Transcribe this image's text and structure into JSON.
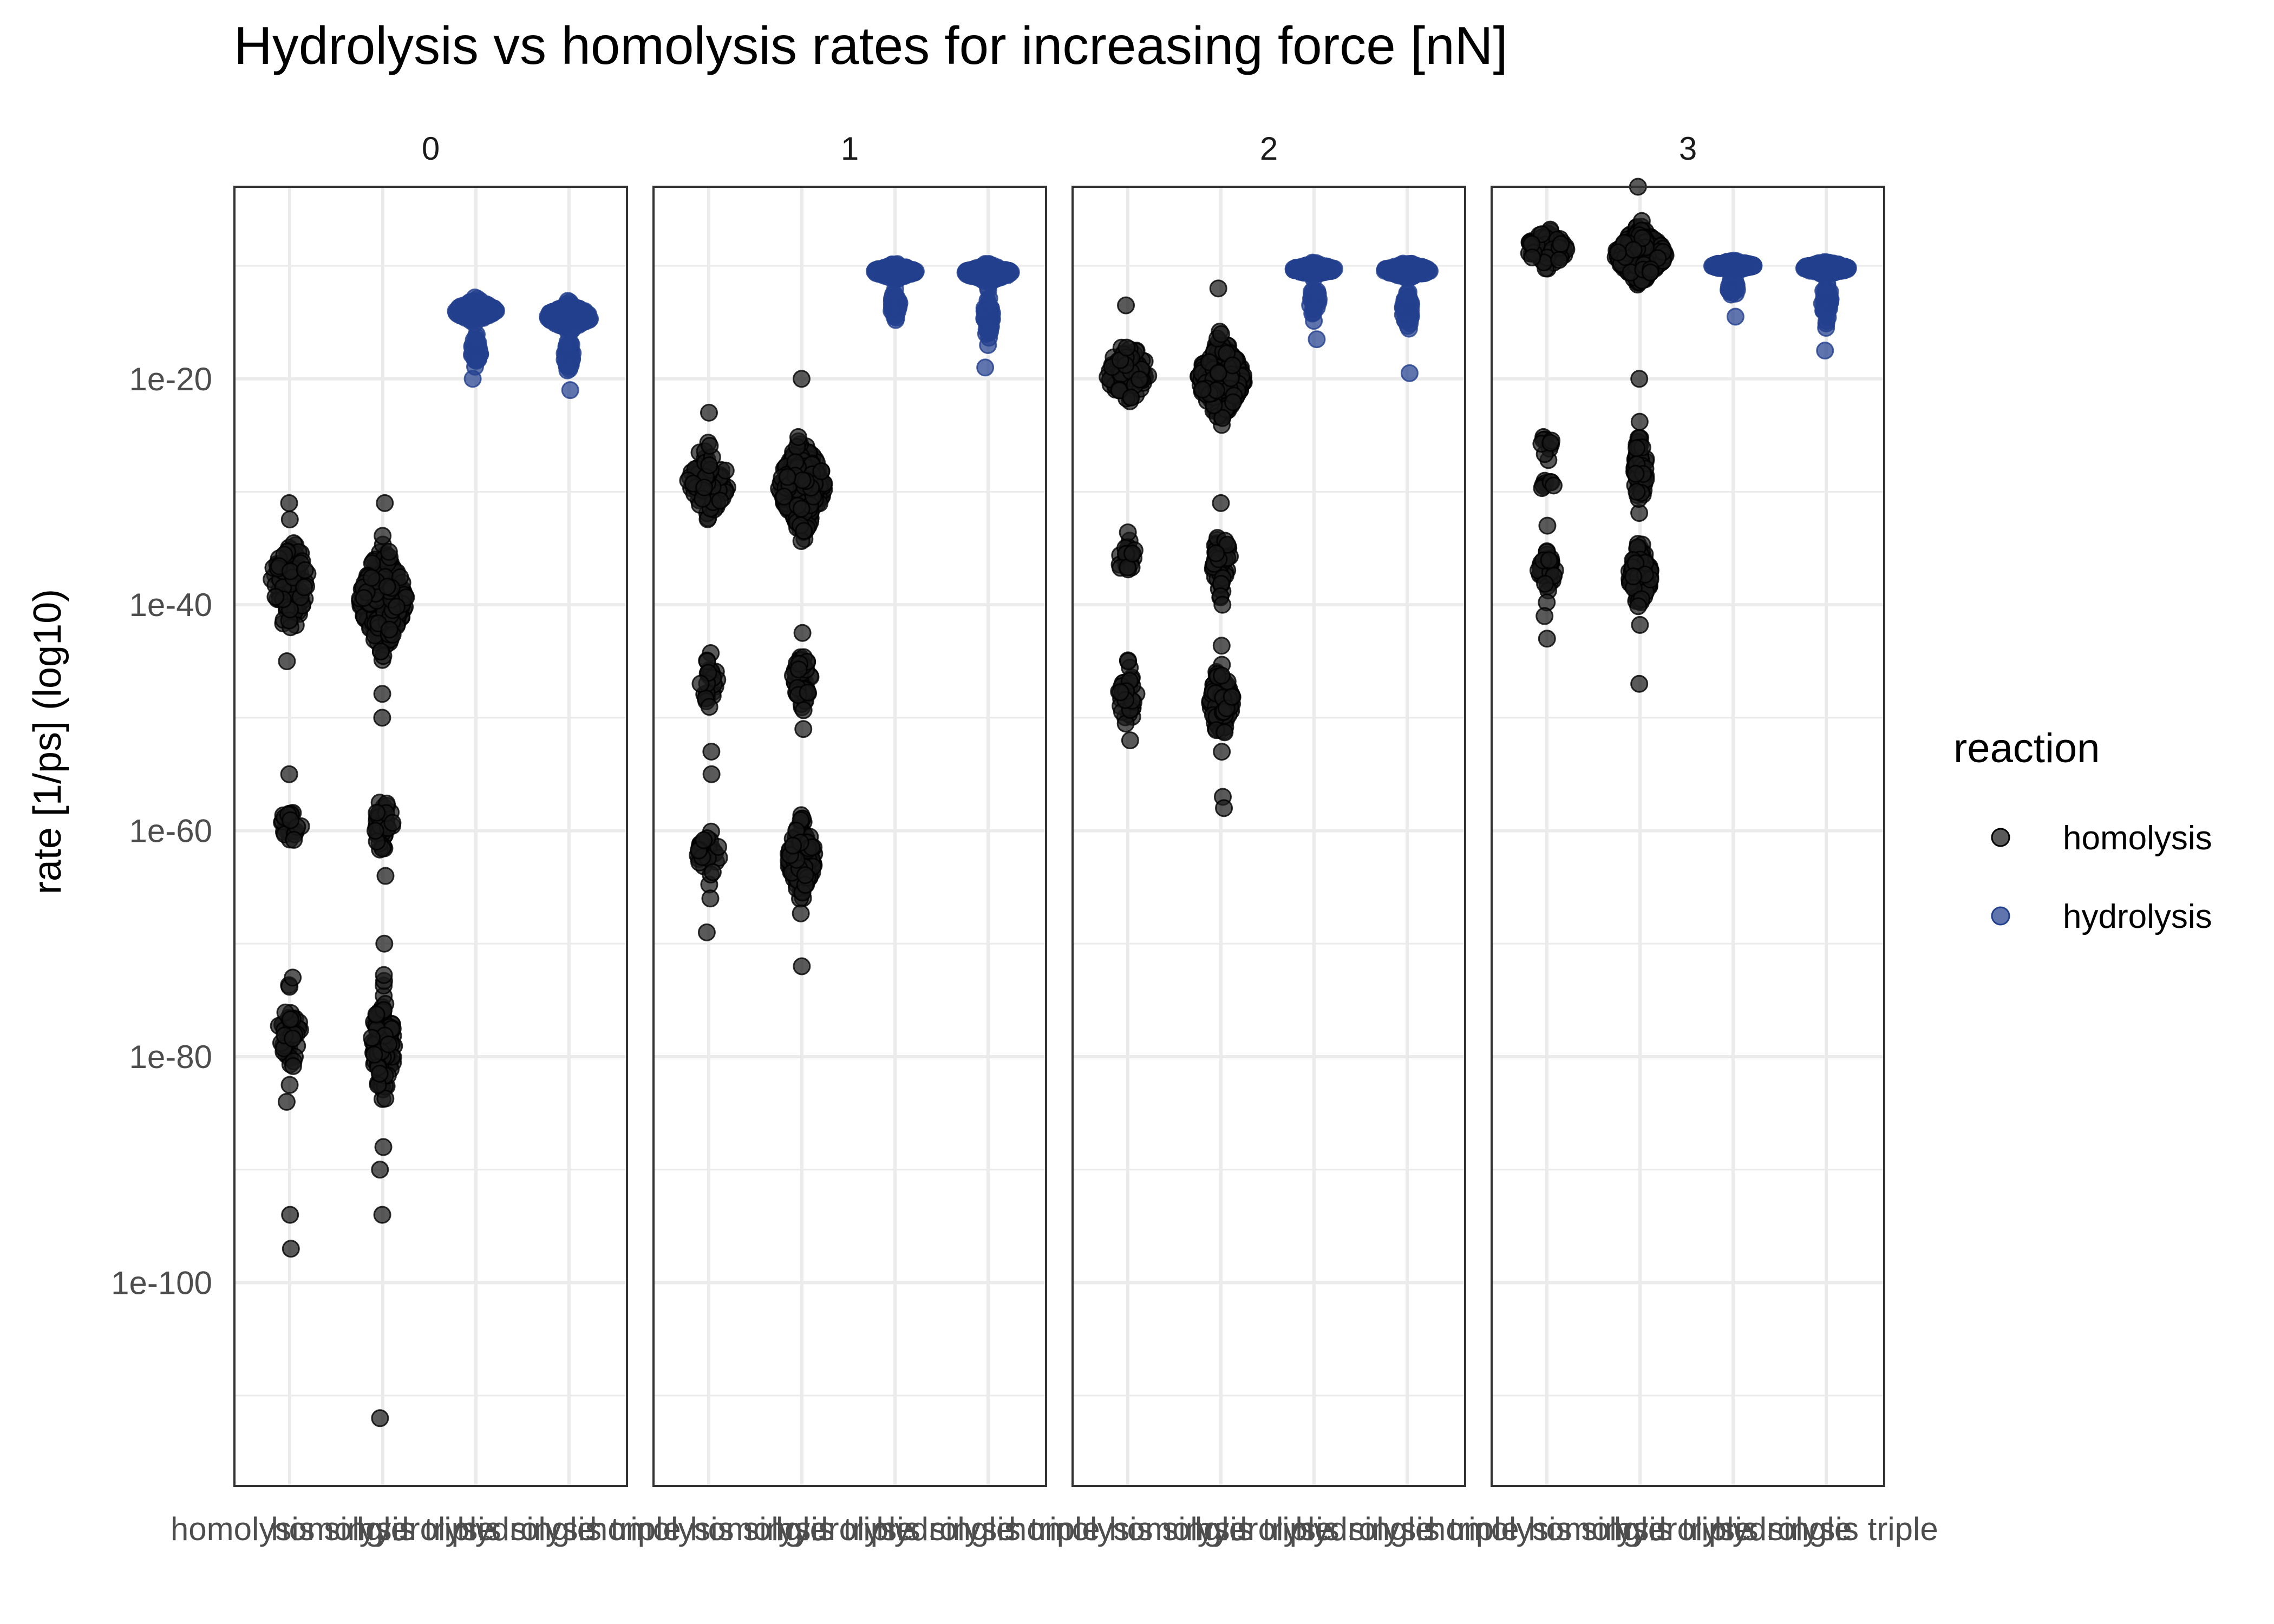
{
  "chart_data": {
    "type": "scatter",
    "subtype": "beeswarm",
    "title": "Hydrolysis vs homolysis rates for increasing force [nN]",
    "xlabel": "",
    "ylabel": "rate [1/ps] (log10)",
    "y_scale": "log10",
    "ylim": [
      1e-118,
      0.001
    ],
    "yticks": [
      {
        "value": 1e-20,
        "label": "1e-20"
      },
      {
        "value": 1e-40,
        "label": "1e-40"
      },
      {
        "value": 1e-60,
        "label": "1e-60"
      },
      {
        "value": 1e-80,
        "label": "1e-80"
      },
      {
        "value": 1e-100,
        "label": "1e-100"
      }
    ],
    "grid": true,
    "legend_position": "right",
    "legend": {
      "title": "reaction",
      "entries": [
        {
          "name": "homolysis",
          "color": "#1a1a1a"
        },
        {
          "name": "hydrolysis",
          "color": "#23408e"
        }
      ]
    },
    "categories": [
      "homolysis single",
      "homolysis triple",
      "hydrolysis single",
      "hydrolysis triple"
    ],
    "category_labels": [
      "homolysis single",
      "homolysis triple",
      "hydrolysis single",
      "hydrolysis triple"
    ],
    "facets": [
      {
        "label": "0",
        "groups": [
          {
            "category": "homolysis single",
            "reaction": "homolysis",
            "clusters": [
              {
                "center": -38,
                "spread": 4,
                "n": 90,
                "width": 0.4
              },
              {
                "center": -59.5,
                "spread": 1.5,
                "n": 22,
                "width": 0.25
              },
              {
                "center": -78,
                "spread": 3.5,
                "n": 40,
                "width": 0.25
              }
            ],
            "outliers": [
              -31,
              -55,
              -94,
              -97,
              -84,
              -45,
              -73
            ]
          },
          {
            "category": "homolysis triple",
            "reaction": "homolysis",
            "clusters": [
              {
                "center": -39.5,
                "spread": 4,
                "n": 260,
                "width": 0.5
              },
              {
                "center": -59.5,
                "spread": 2.2,
                "n": 45,
                "width": 0.25
              },
              {
                "center": -79,
                "spread": 4.5,
                "n": 110,
                "width": 0.25
              }
            ],
            "outliers": [
              -31,
              -50,
              -64,
              -88,
              -90,
              -94,
              -112,
              -70
            ]
          },
          {
            "category": "hydrolysis single",
            "reaction": "hydrolysis",
            "clusters": [
              {
                "center": -14,
                "spread": 0.8,
                "n": 240,
                "width": 0.45
              },
              {
                "center": -17.5,
                "spread": 1.3,
                "n": 40,
                "width": 0.1
              }
            ],
            "outliers": [
              -20
            ]
          },
          {
            "category": "hydrolysis triple",
            "reaction": "hydrolysis",
            "clusters": [
              {
                "center": -14.5,
                "spread": 0.9,
                "n": 280,
                "width": 0.5
              },
              {
                "center": -18,
                "spread": 1.5,
                "n": 50,
                "width": 0.1
              }
            ],
            "outliers": [
              -21
            ]
          }
        ]
      },
      {
        "label": "1",
        "groups": [
          {
            "category": "homolysis single",
            "reaction": "homolysis",
            "clusters": [
              {
                "center": -29,
                "spread": 3,
                "n": 80,
                "width": 0.45
              },
              {
                "center": -46.5,
                "spread": 2,
                "n": 25,
                "width": 0.2
              },
              {
                "center": -62,
                "spread": 2,
                "n": 35,
                "width": 0.25
              }
            ],
            "outliers": [
              -23,
              -53,
              -55,
              -66,
              -69
            ]
          },
          {
            "category": "homolysis triple",
            "reaction": "homolysis",
            "clusters": [
              {
                "center": -29.5,
                "spread": 3.5,
                "n": 300,
                "width": 0.5
              },
              {
                "center": -46.5,
                "spread": 2.5,
                "n": 55,
                "width": 0.2
              },
              {
                "center": -62.5,
                "spread": 3,
                "n": 140,
                "width": 0.3
              }
            ],
            "outliers": [
              -20,
              -51,
              -72
            ]
          },
          {
            "category": "hydrolysis single",
            "reaction": "hydrolysis",
            "clusters": [
              {
                "center": -10.5,
                "spread": 0.5,
                "n": 230,
                "width": 0.45
              },
              {
                "center": -13.5,
                "spread": 1.2,
                "n": 35,
                "width": 0.1
              }
            ],
            "outliers": [
              -14.5
            ]
          },
          {
            "category": "hydrolysis triple",
            "reaction": "hydrolysis",
            "clusters": [
              {
                "center": -10.6,
                "spread": 0.6,
                "n": 270,
                "width": 0.5
              },
              {
                "center": -14.5,
                "spread": 1.8,
                "n": 50,
                "width": 0.1
              }
            ],
            "outliers": [
              -19
            ]
          }
        ]
      },
      {
        "label": "2",
        "groups": [
          {
            "category": "homolysis single",
            "reaction": "homolysis",
            "clusters": [
              {
                "center": -19.5,
                "spread": 2.5,
                "n": 80,
                "width": 0.45
              },
              {
                "center": -36,
                "spread": 2,
                "n": 22,
                "width": 0.2
              },
              {
                "center": -48,
                "spread": 2.5,
                "n": 35,
                "width": 0.2
              }
            ],
            "outliers": [
              -13.5,
              -45,
              -52
            ]
          },
          {
            "category": "homolysis triple",
            "reaction": "homolysis",
            "clusters": [
              {
                "center": -20,
                "spread": 3,
                "n": 300,
                "width": 0.5
              },
              {
                "center": -36,
                "spread": 2.5,
                "n": 55,
                "width": 0.2
              },
              {
                "center": -48.5,
                "spread": 3,
                "n": 110,
                "width": 0.25
              }
            ],
            "outliers": [
              -12,
              -31,
              -40,
              -57,
              -58
            ]
          },
          {
            "category": "hydrolysis single",
            "reaction": "hydrolysis",
            "clusters": [
              {
                "center": -10.3,
                "spread": 0.4,
                "n": 230,
                "width": 0.45
              },
              {
                "center": -13,
                "spread": 1.5,
                "n": 30,
                "width": 0.1
              }
            ],
            "outliers": [
              -16.5
            ]
          },
          {
            "category": "hydrolysis triple",
            "reaction": "hydrolysis",
            "clusters": [
              {
                "center": -10.4,
                "spread": 0.5,
                "n": 270,
                "width": 0.5
              },
              {
                "center": -14,
                "spread": 2,
                "n": 50,
                "width": 0.1
              }
            ],
            "outliers": [
              -19.5
            ]
          }
        ]
      },
      {
        "label": "3",
        "groups": [
          {
            "category": "homolysis single",
            "reaction": "homolysis",
            "clusters": [
              {
                "center": -8.5,
                "spread": 1.5,
                "n": 100,
                "width": 0.45
              },
              {
                "center": -37,
                "spread": 1.8,
                "n": 35,
                "width": 0.2
              },
              {
                "center": -26,
                "spread": 1.2,
                "n": 10,
                "width": 0.15
              },
              {
                "center": -29.5,
                "spread": 0.6,
                "n": 8,
                "width": 0.15
              }
            ],
            "outliers": [
              -33,
              -41,
              -43
            ]
          },
          {
            "category": "homolysis triple",
            "reaction": "homolysis",
            "clusters": [
              {
                "center": -9,
                "spread": 2,
                "n": 340,
                "width": 0.55
              },
              {
                "center": -37.5,
                "spread": 2.5,
                "n": 110,
                "width": 0.25
              },
              {
                "center": -28,
                "spread": 3,
                "n": 70,
                "width": 0.15
              }
            ],
            "outliers": [
              -3,
              -20,
              -47
            ]
          },
          {
            "category": "hydrolysis single",
            "reaction": "hydrolysis",
            "clusters": [
              {
                "center": -10,
                "spread": 0.35,
                "n": 230,
                "width": 0.45
              },
              {
                "center": -12,
                "spread": 1.2,
                "n": 25,
                "width": 0.1
              }
            ],
            "outliers": [
              -14.5
            ]
          },
          {
            "category": "hydrolysis triple",
            "reaction": "hydrolysis",
            "clusters": [
              {
                "center": -10.2,
                "spread": 0.45,
                "n": 270,
                "width": 0.5
              },
              {
                "center": -13,
                "spread": 1.8,
                "n": 50,
                "width": 0.1
              }
            ],
            "outliers": [
              -17.5
            ]
          }
        ]
      }
    ]
  }
}
